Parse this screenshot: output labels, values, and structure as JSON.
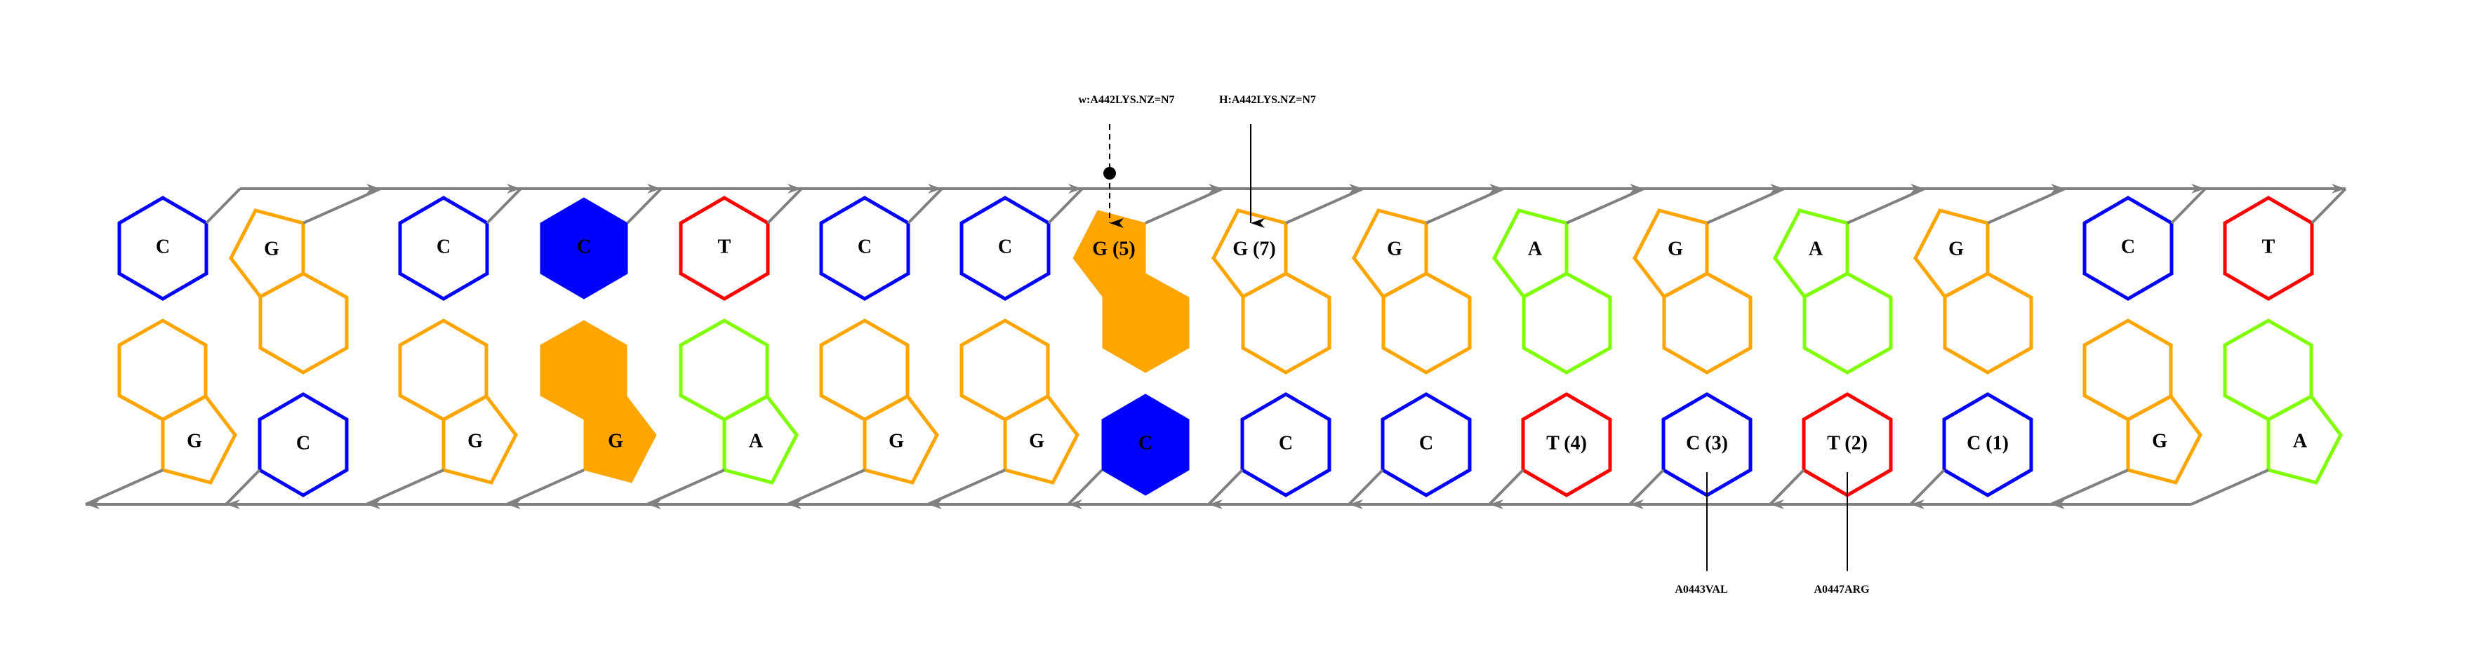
{
  "colors": {
    "C": "#0000ff",
    "G": "#ffa500",
    "T": "#ff0000",
    "A": "#7fff00",
    "backbone": "#808080",
    "annotation": "#000000"
  },
  "top_strand": [
    {
      "label": "C",
      "base": "C",
      "filled": false
    },
    {
      "label": "G",
      "base": "G",
      "filled": false
    },
    {
      "label": "C",
      "base": "C",
      "filled": false
    },
    {
      "label": "C",
      "base": "C",
      "filled": true
    },
    {
      "label": "T",
      "base": "T",
      "filled": false
    },
    {
      "label": "C",
      "base": "C",
      "filled": false
    },
    {
      "label": "C",
      "base": "C",
      "filled": false
    },
    {
      "label": "G (5)",
      "base": "G",
      "filled": true
    },
    {
      "label": "G (7)",
      "base": "G",
      "filled": false
    },
    {
      "label": "G",
      "base": "G",
      "filled": false
    },
    {
      "label": "A",
      "base": "A",
      "filled": false
    },
    {
      "label": "G",
      "base": "G",
      "filled": false
    },
    {
      "label": "A",
      "base": "A",
      "filled": false
    },
    {
      "label": "G",
      "base": "G",
      "filled": false
    },
    {
      "label": "C",
      "base": "C",
      "filled": false
    },
    {
      "label": "T",
      "base": "T",
      "filled": false
    }
  ],
  "bottom_strand": [
    {
      "label": "G",
      "base": "G",
      "filled": false
    },
    {
      "label": "C",
      "base": "C",
      "filled": false
    },
    {
      "label": "G",
      "base": "G",
      "filled": false
    },
    {
      "label": "G",
      "base": "G",
      "filled": true
    },
    {
      "label": "A",
      "base": "A",
      "filled": false
    },
    {
      "label": "G",
      "base": "G",
      "filled": false
    },
    {
      "label": "G",
      "base": "G",
      "filled": false
    },
    {
      "label": "C",
      "base": "C",
      "filled": true
    },
    {
      "label": "C",
      "base": "C",
      "filled": false
    },
    {
      "label": "C",
      "base": "C",
      "filled": false
    },
    {
      "label": "T (4)",
      "base": "T",
      "filled": false
    },
    {
      "label": "C (3)",
      "base": "C",
      "filled": false
    },
    {
      "label": "T (2)",
      "base": "T",
      "filled": false
    },
    {
      "label": "C (1)",
      "base": "C",
      "filled": false
    },
    {
      "label": "G",
      "base": "G",
      "filled": false
    },
    {
      "label": "A",
      "base": "A",
      "filled": false
    }
  ],
  "annotations": {
    "top": [
      {
        "label": "w:A442LYS.NZ=N7",
        "style": "dashed",
        "water_bridge": true,
        "target_strand": "top",
        "target_index": 7
      },
      {
        "label": "H:A442LYS.NZ=N7",
        "style": "solid",
        "water_bridge": false,
        "target_strand": "top",
        "target_index": 8
      }
    ],
    "bottom": [
      {
        "label": "A0443VAL",
        "target_strand": "bottom",
        "target_index": 11
      },
      {
        "label": "A0447ARG",
        "target_strand": "bottom",
        "target_index": 12
      }
    ]
  }
}
